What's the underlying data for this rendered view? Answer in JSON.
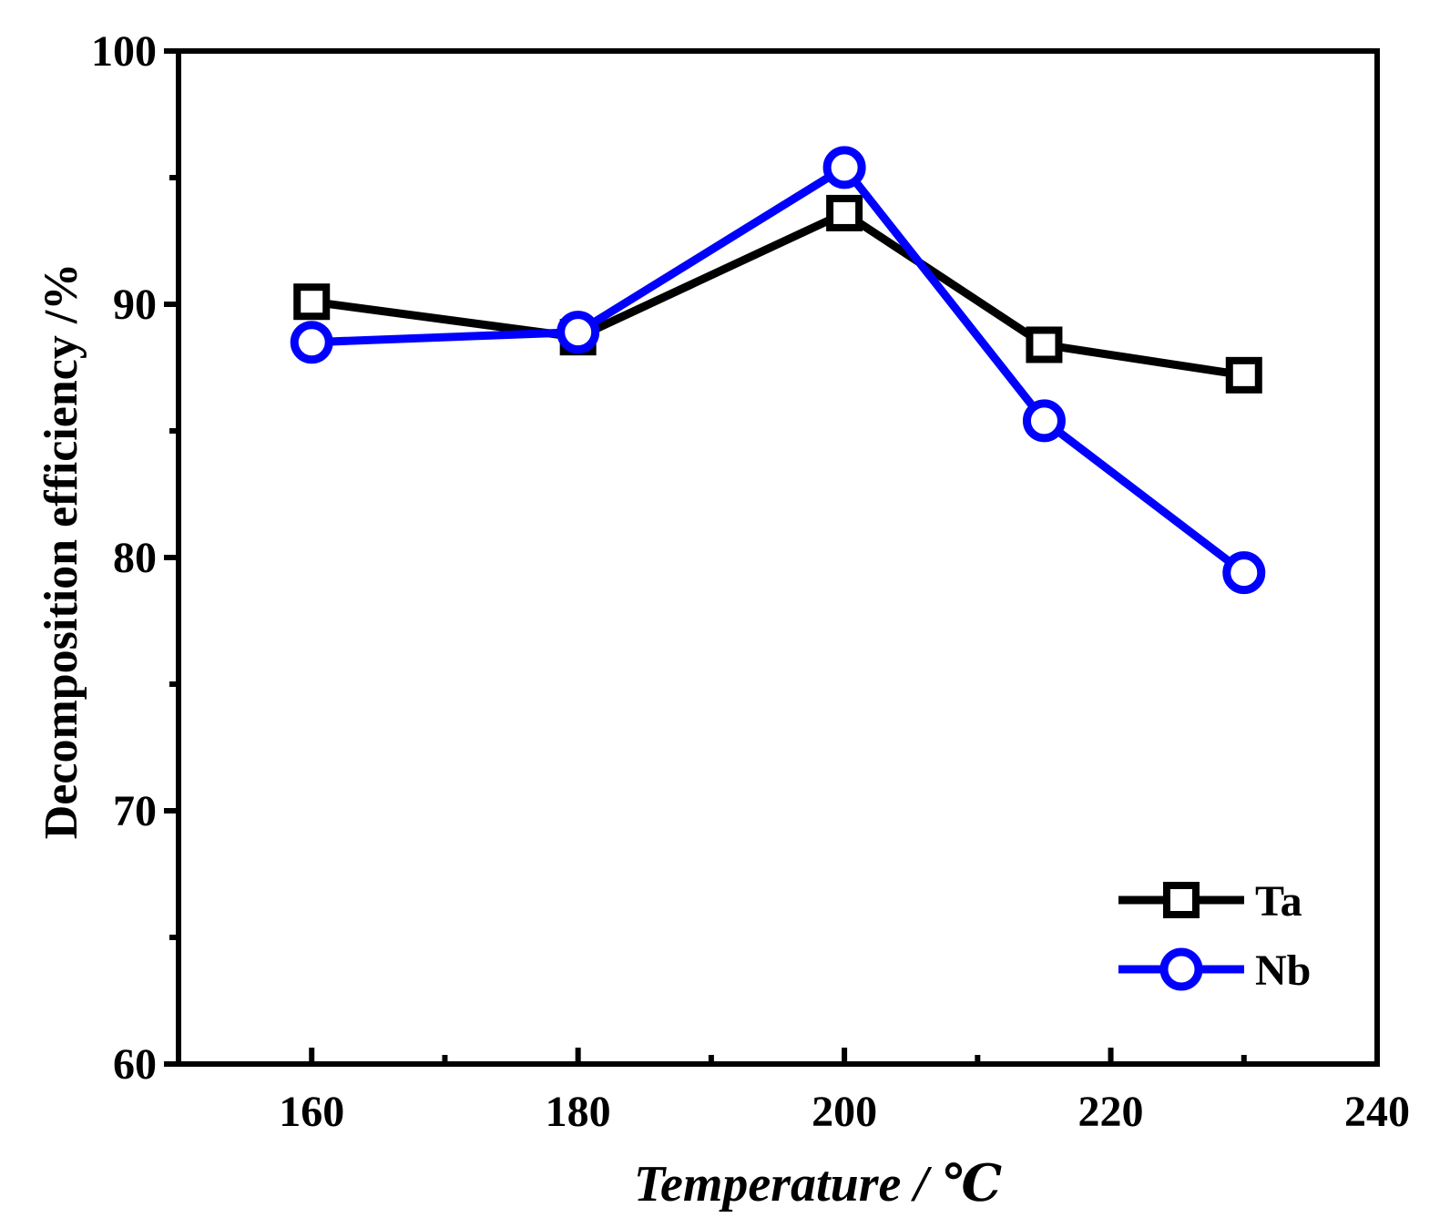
{
  "chart_data": {
    "type": "line",
    "title": "",
    "xlabel": "Temperature / ℃",
    "ylabel": "Decomposition efficiency /%",
    "xlim": [
      150,
      240
    ],
    "ylim": [
      60,
      100
    ],
    "x_ticks": [
      160,
      180,
      200,
      220,
      240
    ],
    "x_minor_ticks": [
      170,
      190,
      210,
      230
    ],
    "y_ticks": [
      60,
      70,
      80,
      90,
      100
    ],
    "y_minor_ticks": [
      65,
      75,
      85,
      95
    ],
    "grid": false,
    "legend_position": "bottom-right",
    "x": [
      160,
      180,
      200,
      215,
      230
    ],
    "series": [
      {
        "name": "Ta",
        "marker": "square",
        "color": "#000000",
        "values": [
          90.1,
          88.7,
          93.6,
          88.4,
          87.2
        ]
      },
      {
        "name": "Nb",
        "marker": "circle",
        "color": "#0000ff",
        "values": [
          88.5,
          88.9,
          95.4,
          85.4,
          79.4
        ]
      }
    ]
  }
}
